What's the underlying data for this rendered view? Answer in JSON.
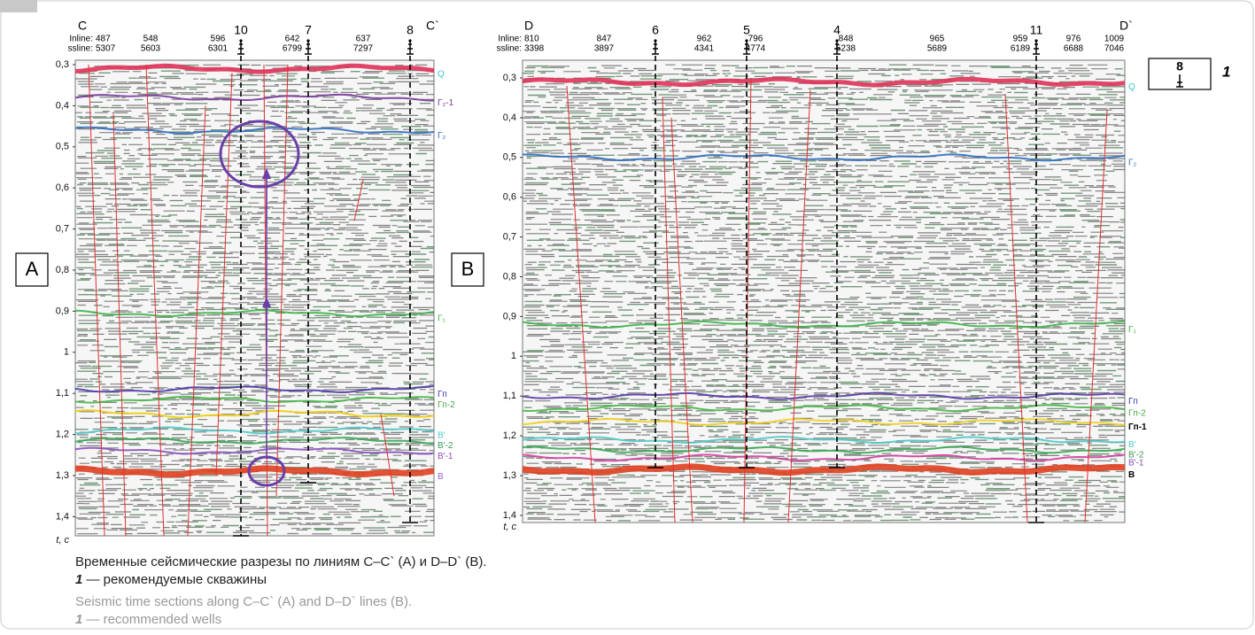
{
  "panels": [
    {
      "label": "A",
      "line_start": "C",
      "line_end": "C`",
      "row_labels": [
        "Inline:",
        "ssline:"
      ],
      "traces": [
        {
          "inline": "487",
          "ssline": "5307"
        },
        {
          "inline": "548",
          "ssline": "5603"
        },
        {
          "inline": "596",
          "ssline": "6301"
        },
        {
          "inline": "642",
          "ssline": "6799"
        },
        {
          "inline": "637",
          "ssline": "7297"
        }
      ],
      "wells": [
        "10",
        "7",
        "8"
      ],
      "time_ticks": [
        "0,3",
        "0,4",
        "0,5",
        "0,6",
        "0,7",
        "0,8",
        "0,9",
        "1",
        "1,1",
        "1,2",
        "1,3",
        "1,4"
      ],
      "time_axis_label": "t, с",
      "horizons": [
        "Q",
        "Г₂-1",
        "Г₂",
        "Г₁",
        "Гп",
        "Гп-2",
        "В'",
        "В'-2",
        "В'-1",
        "В"
      ]
    },
    {
      "label": "B",
      "line_start": "D",
      "line_end": "D`",
      "row_labels": [
        "Inline:",
        "ssline:"
      ],
      "traces": [
        {
          "inline": "810",
          "ssline": "3398"
        },
        {
          "inline": "847",
          "ssline": "3897"
        },
        {
          "inline": "962",
          "ssline": "4341"
        },
        {
          "inline": "796",
          "ssline": "4774"
        },
        {
          "inline": "848",
          "ssline": "5238"
        },
        {
          "inline": "965",
          "ssline": "5689"
        },
        {
          "inline": "959",
          "ssline": "6189"
        },
        {
          "inline": "976",
          "ssline": "6688"
        },
        {
          "inline": "1009",
          "ssline": "7046"
        }
      ],
      "wells": [
        "6",
        "5",
        "4",
        "11"
      ],
      "time_ticks": [
        "0,3",
        "0,4",
        "0,5",
        "0,6",
        "0,7",
        "0,8",
        "0,9",
        "1",
        "1,1",
        "1,2",
        "1,3",
        "1,4"
      ],
      "time_axis_label": "t, с",
      "horizons": [
        "Q",
        "Г₂",
        "Г₁",
        "Гп",
        "Гп-2",
        "Гп-1",
        "В'",
        "В'-2",
        "В'-1",
        "В"
      ]
    }
  ],
  "legend": {
    "symbol_label": "8",
    "number": "1"
  },
  "caption": {
    "ru": {
      "title": "Временные сейсмические разрезы по линиям C–C` (A) и D–D` (B).",
      "legend_text": " — рекомендуемые скважины"
    },
    "en": {
      "title": "Seismic time sections along C–C` (A) and D–D` lines (B).",
      "legend_text": " — recommended wells"
    }
  }
}
